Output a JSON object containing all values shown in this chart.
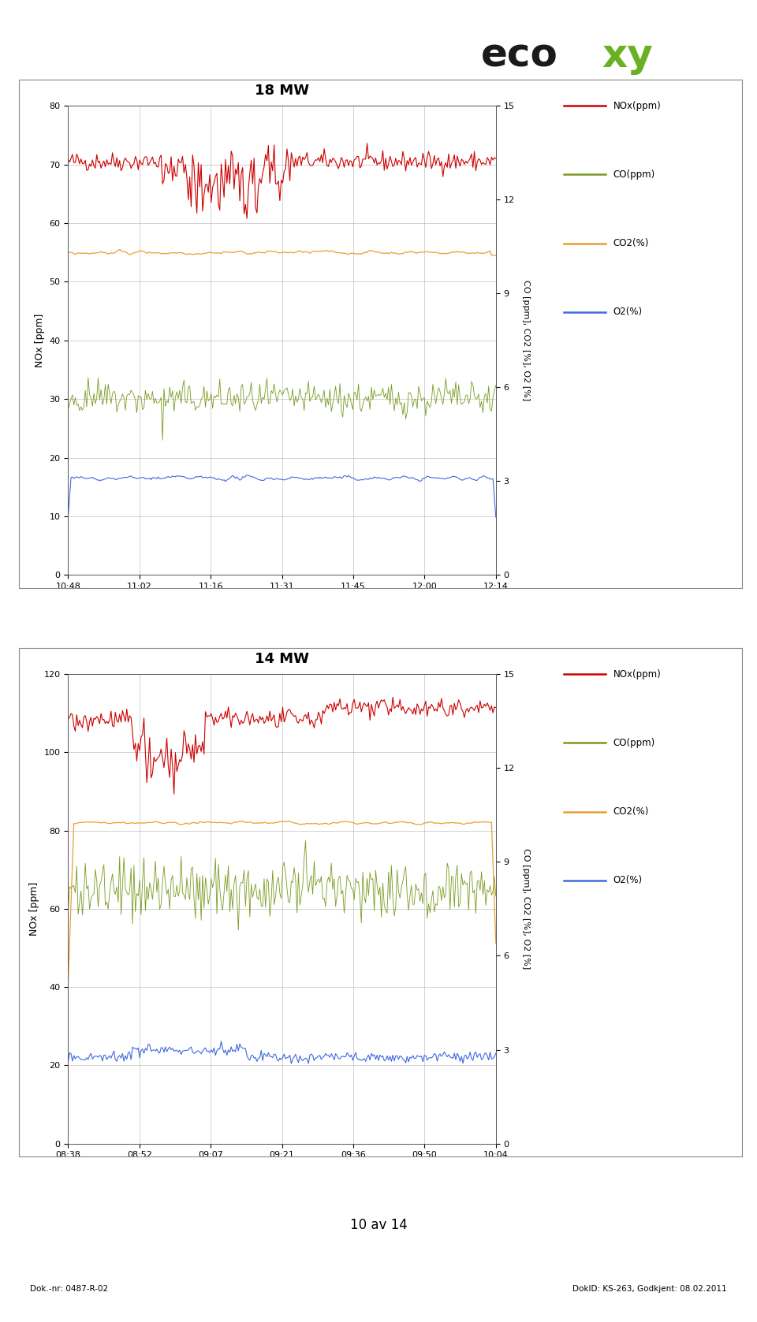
{
  "chart1": {
    "title": "18 MW",
    "ylim_left": [
      0,
      80
    ],
    "ylim_right": [
      0,
      15
    ],
    "xtick_labels": [
      "10:48",
      "11:02",
      "11:16",
      "11:31",
      "11:45",
      "12:00",
      "12:14"
    ],
    "yticks_left": [
      0,
      10,
      20,
      30,
      40,
      50,
      60,
      70,
      80
    ],
    "yticks_right": [
      0,
      3,
      6,
      9,
      12,
      15
    ],
    "ylabel_left": "NOx [ppm]",
    "ylabel_right": "CO [ppm], CO2 [%], O2 [%]",
    "nox_mean": 70.0,
    "co2_mean": 55.0,
    "co_mean": 30.0,
    "o2_mean": 16.5
  },
  "chart2": {
    "title": "14 MW",
    "ylim_left": [
      0,
      120
    ],
    "ylim_right": [
      0,
      15
    ],
    "xtick_labels": [
      "08:38",
      "08:52",
      "09:07",
      "09:21",
      "09:36",
      "09:50",
      "10:04"
    ],
    "yticks_left": [
      0,
      20,
      40,
      60,
      80,
      100,
      120
    ],
    "yticks_right": [
      0,
      3,
      6,
      9,
      12,
      15
    ],
    "ylabel_left": "NOx [ppm]",
    "ylabel_right": "CO [ppm], CO2 [%], O2 [%]",
    "nox_mean": 108.0,
    "co2_mean": 82.0,
    "co_mean": 65.0,
    "o2_mean": 22.0
  },
  "colors": {
    "nox": "#cc0000",
    "co": "#7a9a20",
    "co2": "#e8a030",
    "o2": "#4169e1"
  },
  "legend_labels": [
    "NOx(ppm)",
    "CO(ppm)",
    "CO2(%)",
    "O2(%)"
  ],
  "footer_left": "Dok.-nr: 0487-R-02",
  "footer_right": "DokID: KS-263, Godkjent: 08.02.2011",
  "page_label": "10 av 14",
  "logo_eco_color": "#1a1a1a",
  "logo_xy_color": "#6ab023"
}
